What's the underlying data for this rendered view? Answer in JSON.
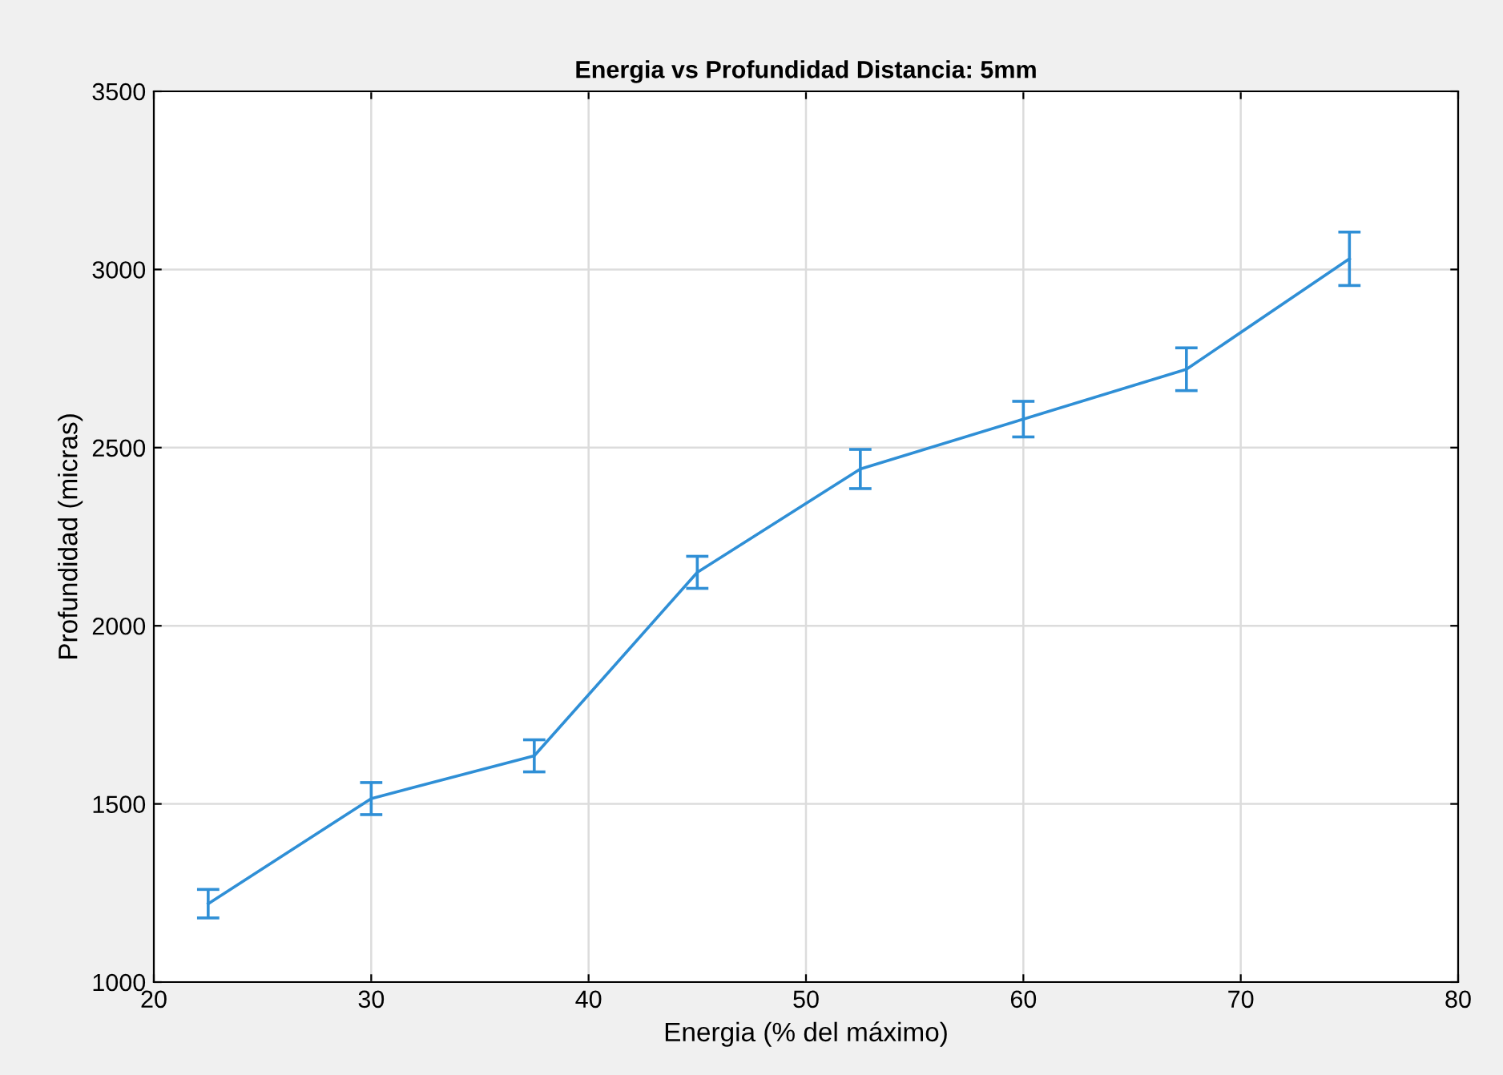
{
  "chart_data": {
    "type": "line",
    "title": "Energia vs Profundidad Distancia: 5mm",
    "xlabel": "Energia (% del máximo)",
    "ylabel": "Profundidad (micras)",
    "x": [
      22.5,
      30,
      37.5,
      45,
      52.5,
      60,
      67.5,
      75
    ],
    "series": [
      {
        "color": "#2f8fd6",
        "values": [
          1220,
          1515,
          1635,
          2150,
          2440,
          2580,
          2720,
          3030
        ],
        "errors": [
          40,
          45,
          45,
          45,
          55,
          50,
          60,
          75
        ]
      }
    ],
    "xlim": [
      20,
      80
    ],
    "xticks": [
      20,
      30,
      40,
      50,
      60,
      70,
      80
    ],
    "ylim": [
      1000,
      3500
    ],
    "yticks": [
      1000,
      1500,
      2000,
      2500,
      3000,
      3500
    ],
    "grid": true,
    "marker": "none",
    "line_style": "solid"
  }
}
